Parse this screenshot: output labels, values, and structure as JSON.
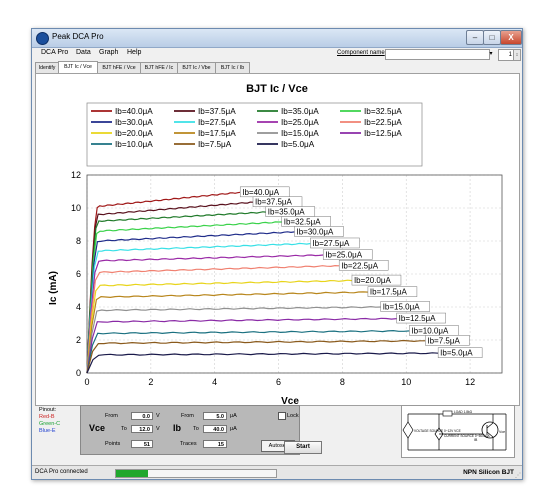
{
  "window": {
    "title": "Peak DCA Pro"
  },
  "window_controls": {
    "minimize": "–",
    "maximize": "□",
    "close": "X"
  },
  "menu": [
    "DCA Pro",
    "Data",
    "Graph",
    "Help"
  ],
  "component": {
    "label": "Component name",
    "value": "",
    "dropdown_arrow": "▾",
    "number": "1",
    "spin": "↕"
  },
  "tabs": [
    "Identify",
    "BJT Ic / Vce",
    "BJT hFE / Vce",
    "BJT hFE / Ic",
    "BJT Ic / Vbe",
    "BJT Ic / Ib"
  ],
  "active_tab": 1,
  "chart_data": {
    "type": "line",
    "title": "BJT Ic / Vce",
    "xlabel": "Vce",
    "ylabel": "Ic (mA)",
    "xlim": [
      0,
      13
    ],
    "ylim": [
      0,
      12
    ],
    "xticks": [
      0,
      2,
      4,
      6,
      8,
      10,
      12
    ],
    "yticks": [
      0,
      2,
      4,
      6,
      8,
      10,
      12
    ],
    "grid": true,
    "legend_position": "top",
    "series": [
      {
        "name": "Ib=40.0μA",
        "color": "#a01818",
        "sat": 10.1,
        "end": 10.95,
        "xend": 4.8
      },
      {
        "name": "Ib=37.5μA",
        "color": "#58101c",
        "sat": 9.6,
        "end": 10.35,
        "xend": 5.2
      },
      {
        "name": "Ib=35.0μA",
        "color": "#207a2a",
        "sat": 9.2,
        "end": 9.75,
        "xend": 5.6
      },
      {
        "name": "Ib=32.5μA",
        "color": "#3ad24a",
        "sat": 8.6,
        "end": 9.15,
        "xend": 6.1
      },
      {
        "name": "Ib=30.0μA",
        "color": "#1f2c8a",
        "sat": 8.0,
        "end": 8.55,
        "xend": 6.5
      },
      {
        "name": "Ib=27.5μA",
        "color": "#38e0e6",
        "sat": 7.4,
        "end": 7.85,
        "xend": 7.0
      },
      {
        "name": "Ib=25.0μA",
        "color": "#9a2aa6",
        "sat": 6.8,
        "end": 7.15,
        "xend": 7.4
      },
      {
        "name": "Ib=22.5μA",
        "color": "#f08070",
        "sat": 6.1,
        "end": 6.5,
        "xend": 7.9
      },
      {
        "name": "Ib=20.0μA",
        "color": "#e8d41a",
        "sat": 5.3,
        "end": 5.6,
        "xend": 8.3
      },
      {
        "name": "Ib=17.5μA",
        "color": "#b8861c",
        "sat": 4.6,
        "end": 4.9,
        "xend": 8.8
      },
      {
        "name": "Ib=15.0μA",
        "color": "#909090",
        "sat": 3.8,
        "end": 4.0,
        "xend": 9.2
      },
      {
        "name": "Ib=12.5μA",
        "color": "#8a2aa6",
        "sat": 3.1,
        "end": 3.3,
        "xend": 9.7
      },
      {
        "name": "Ib=10.0μA",
        "color": "#1a7080",
        "sat": 2.4,
        "end": 2.55,
        "xend": 10.1
      },
      {
        "name": "Ib=7.5μA",
        "color": "#8a5a1c",
        "sat": 1.8,
        "end": 1.95,
        "xend": 10.6
      },
      {
        "name": "Ib=5.0μA",
        "color": "#1a1a4a",
        "sat": 1.1,
        "end": 1.2,
        "xend": 11.0
      }
    ]
  },
  "pins": {
    "title": "Pinout:",
    "items": [
      {
        "text": "Red-B",
        "color": "#cc2020"
      },
      {
        "text": "Green-C",
        "color": "#18a030"
      },
      {
        "text": "Blue-E",
        "color": "#2040d0"
      }
    ]
  },
  "controls": {
    "vce_label": "Vce",
    "ib_label": "Ib",
    "from_label": "From",
    "to_label": "To",
    "vce_from": "0.0",
    "vce_to": "12.0",
    "v_unit": "V",
    "ib_from": "5.0",
    "ib_to": "40.0",
    "ua_unit": "μA",
    "points_label": "Points",
    "points": "51",
    "traces_label": "Traces",
    "traces": "15",
    "lock_label": "Lock",
    "autoset_label": "Autoset",
    "start_label": "Start"
  },
  "schematic": {
    "vce_source": "VOLTAGE SOURCE 0~12V VCE",
    "ib_source": "CURRENT SOURCE 0~5000µA",
    "load": "LOAD 1.8kΩ",
    "ib": "IB",
    "vce": "Vce"
  },
  "status": {
    "text": "DCA Pro connected",
    "progress": 0.2,
    "device": "NPN Silicon BJT",
    "grip": "⋰"
  }
}
